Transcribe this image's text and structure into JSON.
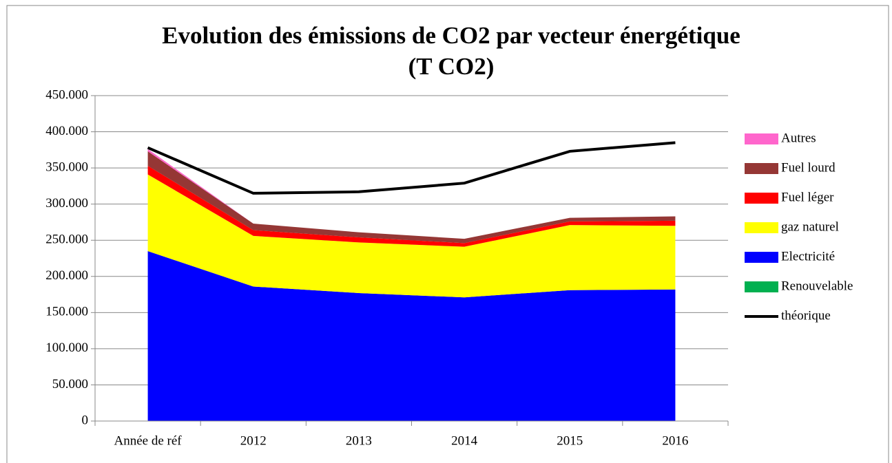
{
  "chart_data": {
    "type": "stacked_area",
    "title": [
      "Evolution des émissions de CO2 par vecteur énergétique",
      "(T CO2)"
    ],
    "categories": [
      "Année de réf",
      "2012",
      "2013",
      "2014",
      "2015",
      "2016"
    ],
    "series": [
      {
        "name": "Renouvelable",
        "color": "#00b050",
        "values": [
          0,
          0,
          0,
          0,
          0,
          0
        ]
      },
      {
        "name": "Electricité",
        "color": "#0000ff",
        "values": [
          235000,
          186000,
          177000,
          171000,
          181000,
          182000
        ]
      },
      {
        "name": "gaz naturel",
        "color": "#ffff00",
        "values": [
          106000,
          70000,
          70000,
          70000,
          90000,
          88000
        ]
      },
      {
        "name": "Fuel léger",
        "color": "#ff0000",
        "values": [
          12000,
          8000,
          7000,
          5000,
          5000,
          7000
        ]
      },
      {
        "name": "Fuel lourd",
        "color": "#953735",
        "values": [
          20000,
          9000,
          7000,
          6000,
          5000,
          6000
        ]
      },
      {
        "name": "Autres",
        "color": "#ff66cc",
        "values": [
          3000,
          0,
          0,
          0,
          0,
          0
        ]
      },
      {
        "name": "théorique",
        "color": "#000000",
        "type": "line",
        "values": [
          378000,
          315000,
          317000,
          329000,
          373000,
          385000
        ]
      }
    ],
    "ylim": [
      0,
      450000
    ],
    "yticks": [
      0,
      {
        "value": 50000,
        "label": "50.000"
      },
      {
        "value": 100000,
        "label": "100.000"
      },
      {
        "value": 150000,
        "label": "150.000"
      },
      {
        "value": 200000,
        "label": "200.000"
      },
      {
        "value": 250000,
        "label": "250.000"
      },
      {
        "value": 300000,
        "label": "300.000"
      },
      {
        "value": 350000,
        "label": "350.000"
      },
      {
        "value": 400000,
        "label": "400.000"
      },
      {
        "value": 450000,
        "label": "450.000"
      }
    ],
    "grid": true,
    "legend": "right"
  }
}
